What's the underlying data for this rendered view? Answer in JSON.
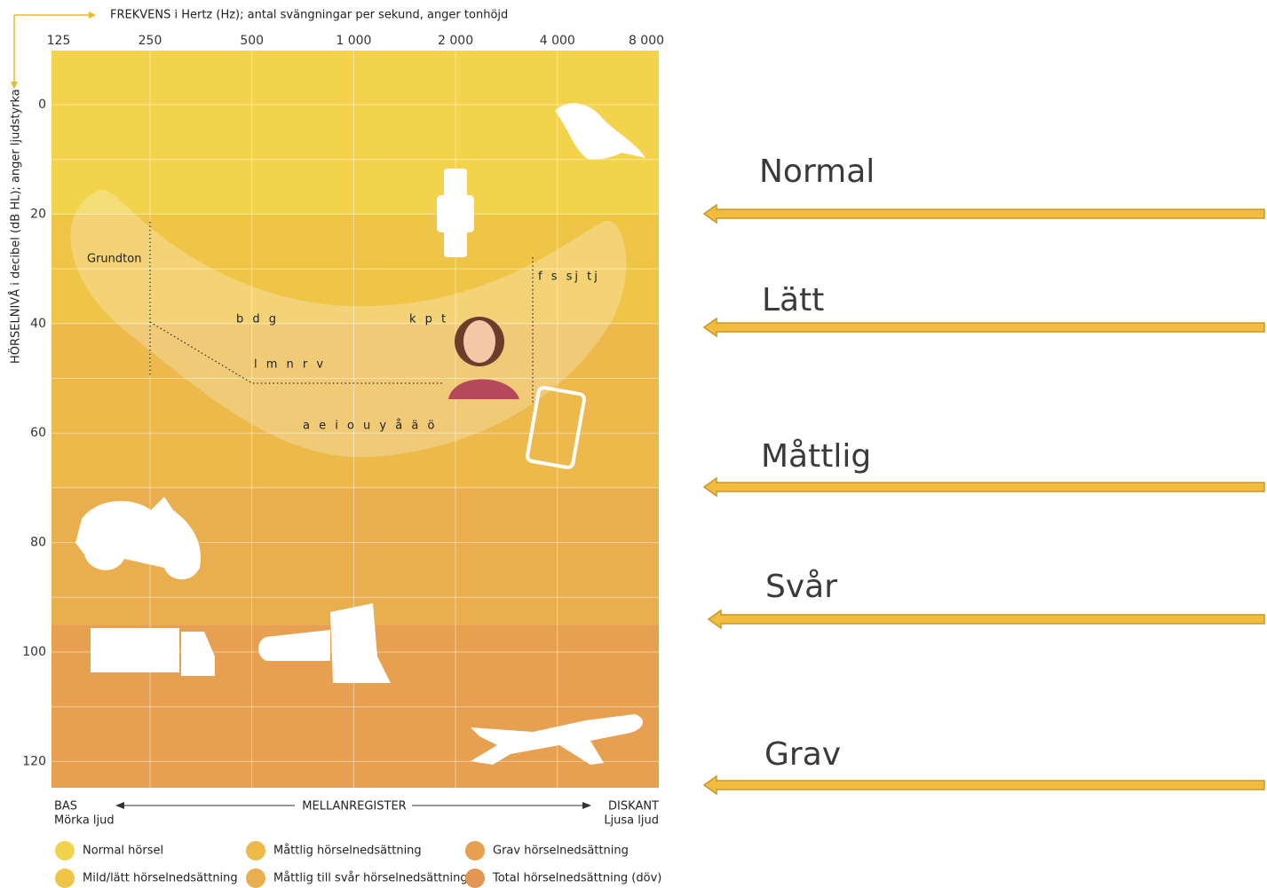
{
  "x_axis": {
    "title": "FREKVENS i Hertz (Hz); antal svängningar per sekund, anger tonhöjd",
    "ticks": [
      {
        "value": 125,
        "label": "125"
      },
      {
        "value": 250,
        "label": "250"
      },
      {
        "value": 500,
        "label": "500"
      },
      {
        "value": 1000,
        "label": "1 000"
      },
      {
        "value": 2000,
        "label": "2 000"
      },
      {
        "value": 4000,
        "label": "4 000"
      },
      {
        "value": 8000,
        "label": "8 000"
      }
    ]
  },
  "y_axis": {
    "title": "HÖRSELNIVÅ i decibel (dB HL); anger ljudstyrka",
    "ticks": [
      0,
      20,
      40,
      60,
      80,
      100,
      120
    ]
  },
  "speech_labels": [
    "Grundton",
    "b d g",
    "k p t",
    "f s sj tj",
    "l m n r v",
    "a e i o u y å ä ö"
  ],
  "register": {
    "left": "BAS",
    "left_sub": "Mörka ljud",
    "middle": "MELLANREGISTER",
    "right": "DISKANT",
    "right_sub": "Ljusa ljud"
  },
  "legend": [
    {
      "label": "Normal hörsel",
      "color": "#f2d34b"
    },
    {
      "label": "Mild/lätt hörselnedsättning",
      "color": "#efc548"
    },
    {
      "label": "Måttlig hörselnedsättning",
      "color": "#ecb94a"
    },
    {
      "label": "Måttlig till svår hörselnedsättning",
      "color": "#e9ae4d"
    },
    {
      "label": "Grav hörselnedsättning",
      "color": "#e6a04f"
    },
    {
      "label": "Total hörselnedsättning (döv)",
      "color": "#e39752"
    }
  ],
  "arrows": [
    "Normal",
    "Lätt",
    "Måttlig",
    "Svår",
    "Grav"
  ]
}
